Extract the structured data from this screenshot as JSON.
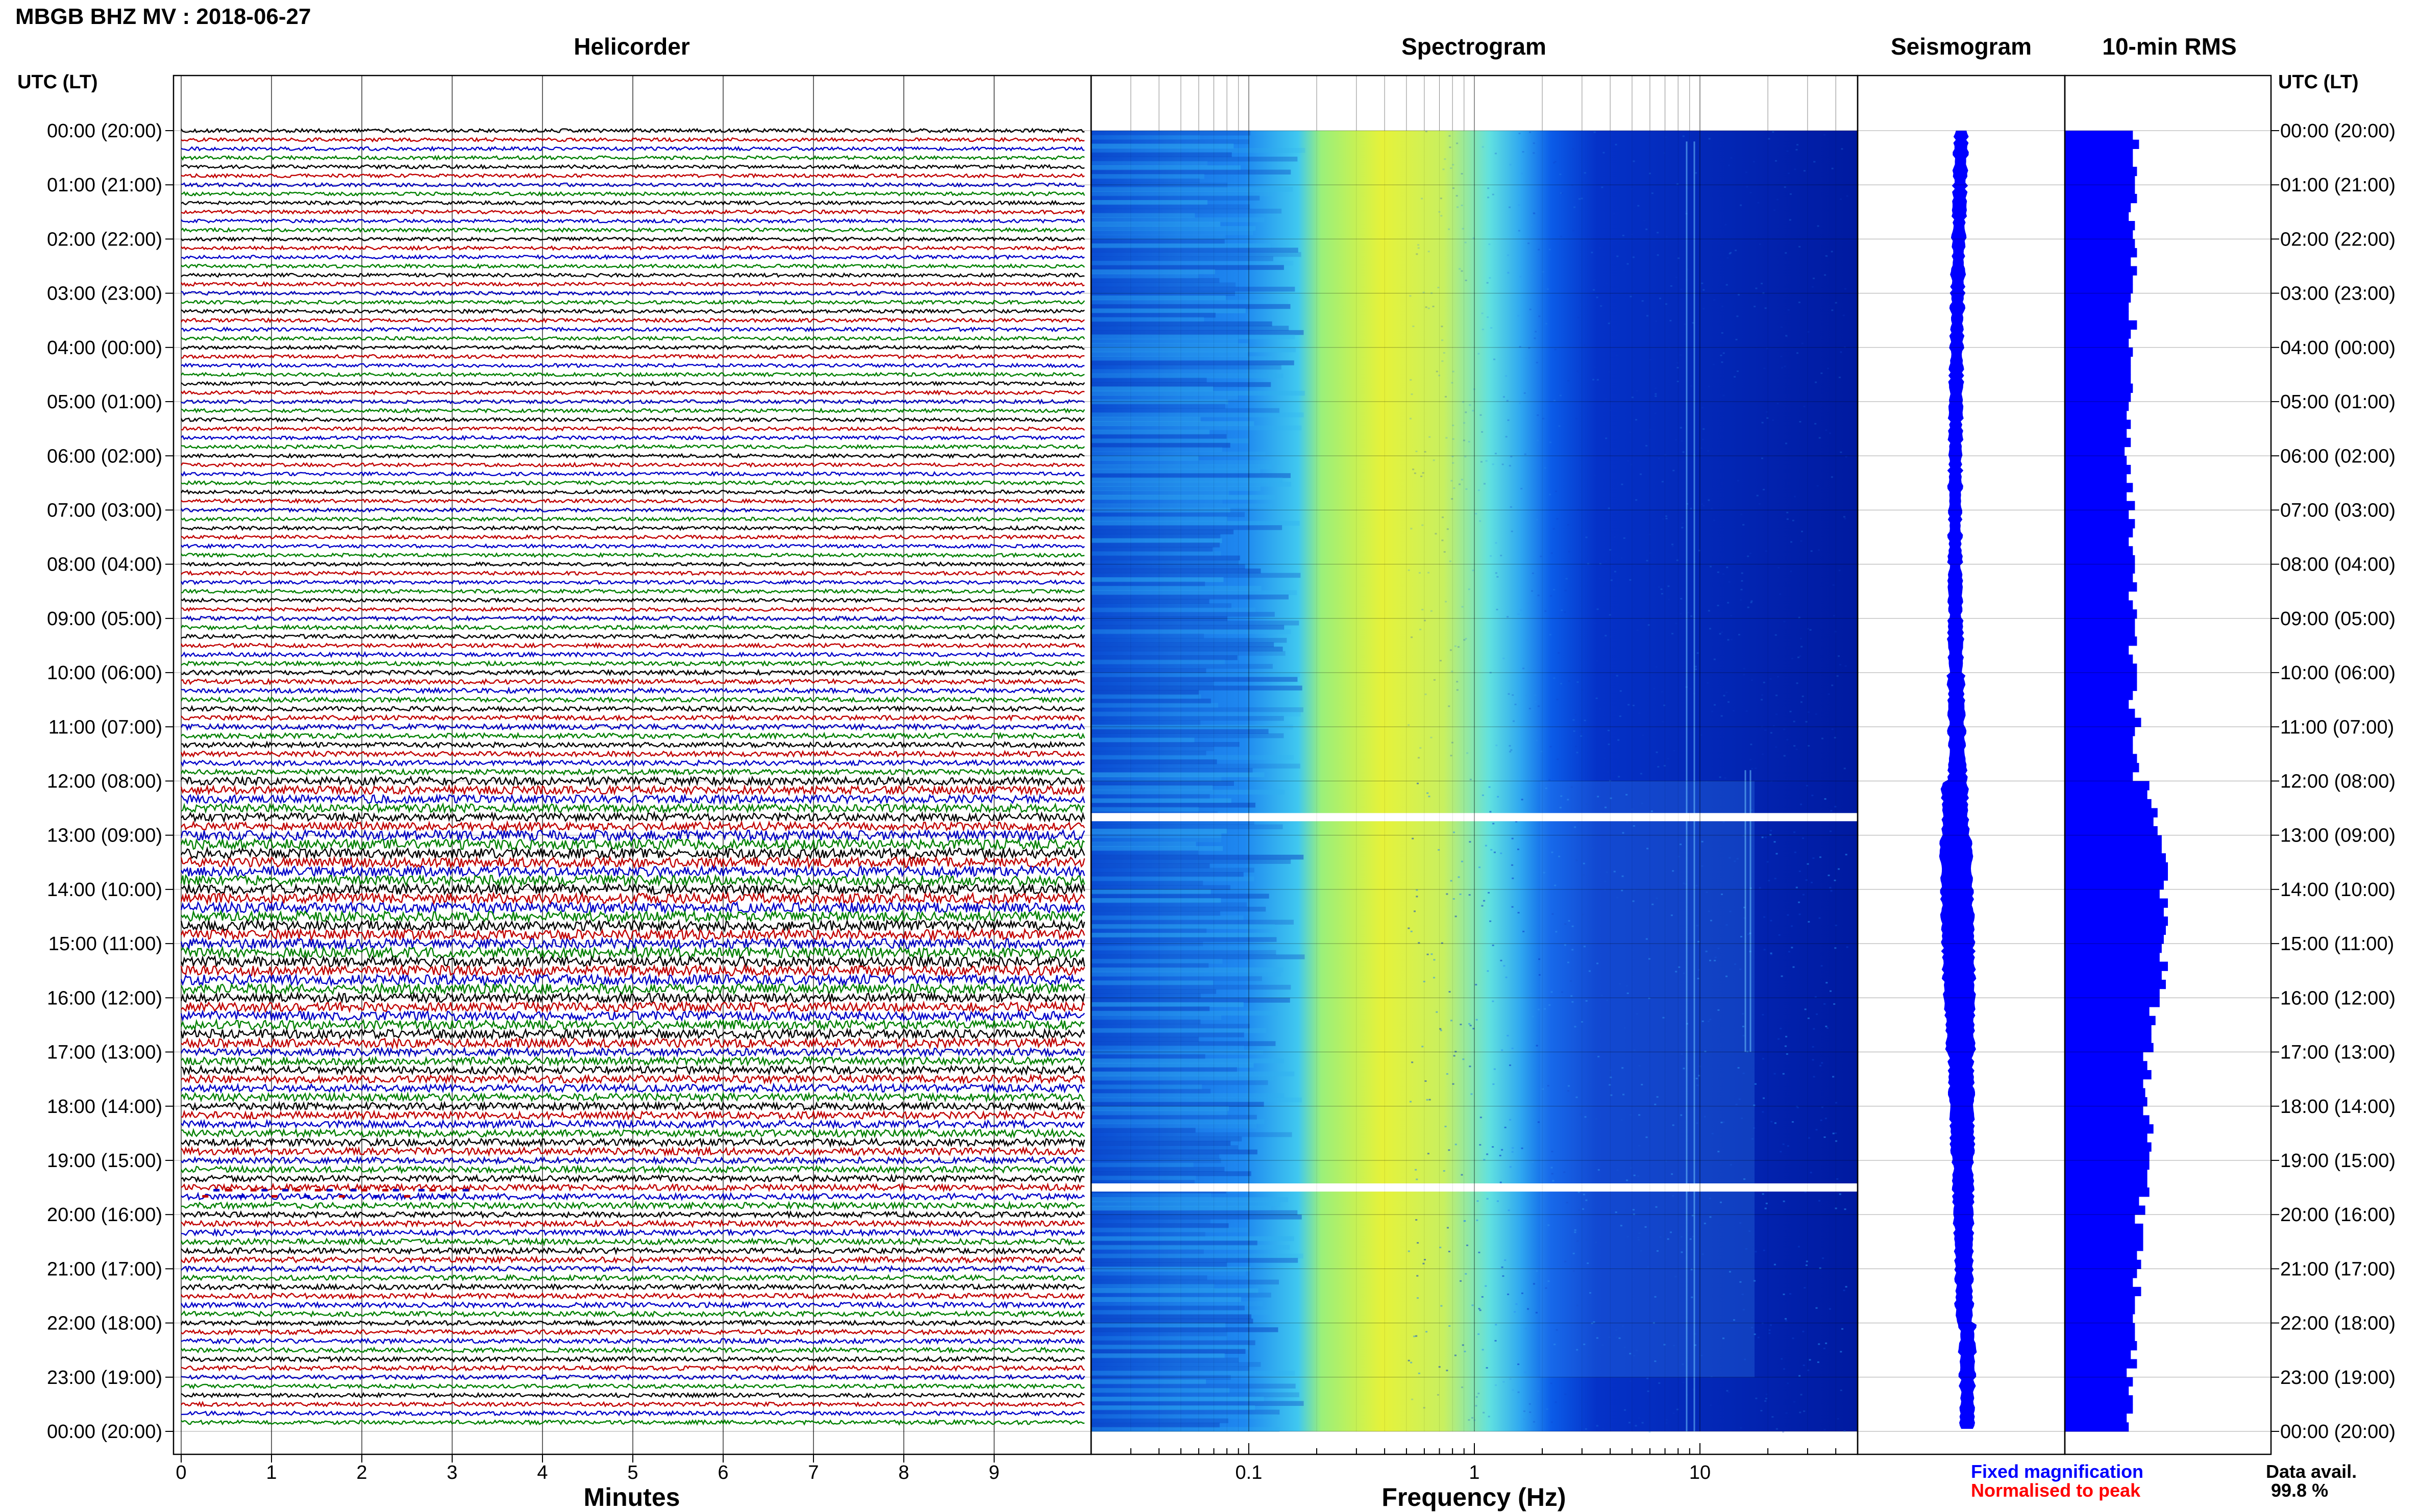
{
  "header": {
    "title": "MBGB BHZ MV : 2018-06-27",
    "panel_titles": [
      "Helicorder",
      "Spectrogram",
      "Seismogram",
      "10-min RMS"
    ],
    "utc_label_left": "UTC (LT)",
    "utc_label_right": "UTC (LT)"
  },
  "footer": {
    "helicorder_axis_title": "Minutes",
    "spectrogram_axis_title": "Frequency (Hz)",
    "legend_fixed": "Fixed magnification",
    "legend_normalised": "Normalised to peak",
    "data_avail_label": "Data avail.",
    "data_avail_value": "99.8 %"
  },
  "colors": {
    "trace_cycle": [
      "#000000",
      "#c00000",
      "#0000c8",
      "#008000"
    ],
    "fixed_magnification": "#0000ff",
    "normalised_to_peak": "#ff0000",
    "bars": "#0000ff",
    "spectrogram_colormap": [
      "#00007f",
      "#0000ff",
      "#0080ff",
      "#00ffff",
      "#80ff80",
      "#ffff00"
    ]
  },
  "chart_data": [
    {
      "type": "line",
      "panel": "Helicorder",
      "xlabel": "Minutes",
      "xlim": [
        0,
        10
      ],
      "x_ticks": [
        0,
        1,
        2,
        3,
        4,
        5,
        6,
        7,
        8,
        9
      ],
      "y_ticks": [
        "00:00 (20:00)",
        "01:00 (21:00)",
        "02:00 (22:00)",
        "03:00 (23:00)",
        "04:00 (00:00)",
        "05:00 (01:00)",
        "06:00 (02:00)",
        "07:00 (03:00)",
        "08:00 (04:00)",
        "09:00 (05:00)",
        "10:00 (06:00)",
        "11:00 (07:00)",
        "12:00 (08:00)",
        "13:00 (09:00)",
        "14:00 (10:00)",
        "15:00 (11:00)",
        "16:00 (12:00)",
        "17:00 (13:00)",
        "18:00 (14:00)",
        "19:00 (15:00)",
        "20:00 (16:00)",
        "21:00 (17:00)",
        "22:00 (18:00)",
        "23:00 (19:00)",
        "00:00 (20:00)"
      ],
      "rows": 144,
      "minutes_per_row": 10,
      "relative_amplitude_by_hour": [
        0.35,
        0.35,
        0.35,
        0.35,
        0.35,
        0.35,
        0.35,
        0.35,
        0.35,
        0.4,
        0.45,
        0.5,
        0.8,
        1.0,
        1.0,
        1.0,
        0.9,
        0.75,
        0.7,
        0.6,
        0.55,
        0.5,
        0.45,
        0.4
      ]
    },
    {
      "type": "heatmap",
      "panel": "Spectrogram",
      "xlabel": "Frequency (Hz)",
      "x_scale": "log",
      "xlim": [
        0.02,
        50
      ],
      "x_tick_labels": [
        "0.1",
        "1",
        "10"
      ],
      "peak_band_hz": [
        0.2,
        0.8
      ],
      "data_gaps_utc": [
        "12:40",
        "19:30"
      ]
    },
    {
      "type": "line",
      "panel": "Seismogram",
      "legend": [
        "Fixed magnification",
        "Normalised to peak"
      ]
    },
    {
      "type": "bar",
      "panel": "10-min RMS",
      "orientation": "horizontal",
      "categories_per_row_minutes": 10,
      "values": [
        0.33,
        0.36,
        0.33,
        0.33,
        0.35,
        0.34,
        0.34,
        0.35,
        0.32,
        0.31,
        0.34,
        0.33,
        0.34,
        0.35,
        0.32,
        0.35,
        0.33,
        0.33,
        0.32,
        0.31,
        0.31,
        0.35,
        0.32,
        0.31,
        0.33,
        0.32,
        0.32,
        0.32,
        0.33,
        0.32,
        0.31,
        0.3,
        0.32,
        0.3,
        0.32,
        0.29,
        0.3,
        0.32,
        0.3,
        0.33,
        0.3,
        0.34,
        0.31,
        0.34,
        0.33,
        0.31,
        0.33,
        0.34,
        0.34,
        0.33,
        0.35,
        0.31,
        0.33,
        0.35,
        0.34,
        0.34,
        0.35,
        0.31,
        0.33,
        0.35,
        0.35,
        0.35,
        0.33,
        0.31,
        0.34,
        0.37,
        0.34,
        0.33,
        0.33,
        0.35,
        0.36,
        0.33,
        0.41,
        0.4,
        0.42,
        0.45,
        0.43,
        0.45,
        0.47,
        0.47,
        0.49,
        0.5,
        0.5,
        0.48,
        0.46,
        0.5,
        0.48,
        0.5,
        0.49,
        0.48,
        0.47,
        0.46,
        0.5,
        0.47,
        0.49,
        0.46,
        0.46,
        0.41,
        0.44,
        0.42,
        0.42,
        0.43,
        0.38,
        0.4,
        0.42,
        0.38,
        0.39,
        0.4,
        0.38,
        0.41,
        0.43,
        0.4,
        0.42,
        0.41,
        0.41,
        0.4,
        0.4,
        0.41,
        0.36,
        0.39,
        0.34,
        0.38,
        0.38,
        0.38,
        0.35,
        0.37,
        0.35,
        0.33,
        0.37,
        0.34,
        0.34,
        0.33,
        0.34,
        0.34,
        0.35,
        0.32,
        0.35,
        0.3,
        0.33,
        0.31,
        0.33,
        0.33,
        0.3,
        0.31
      ],
      "value_scale": "relative"
    }
  ]
}
